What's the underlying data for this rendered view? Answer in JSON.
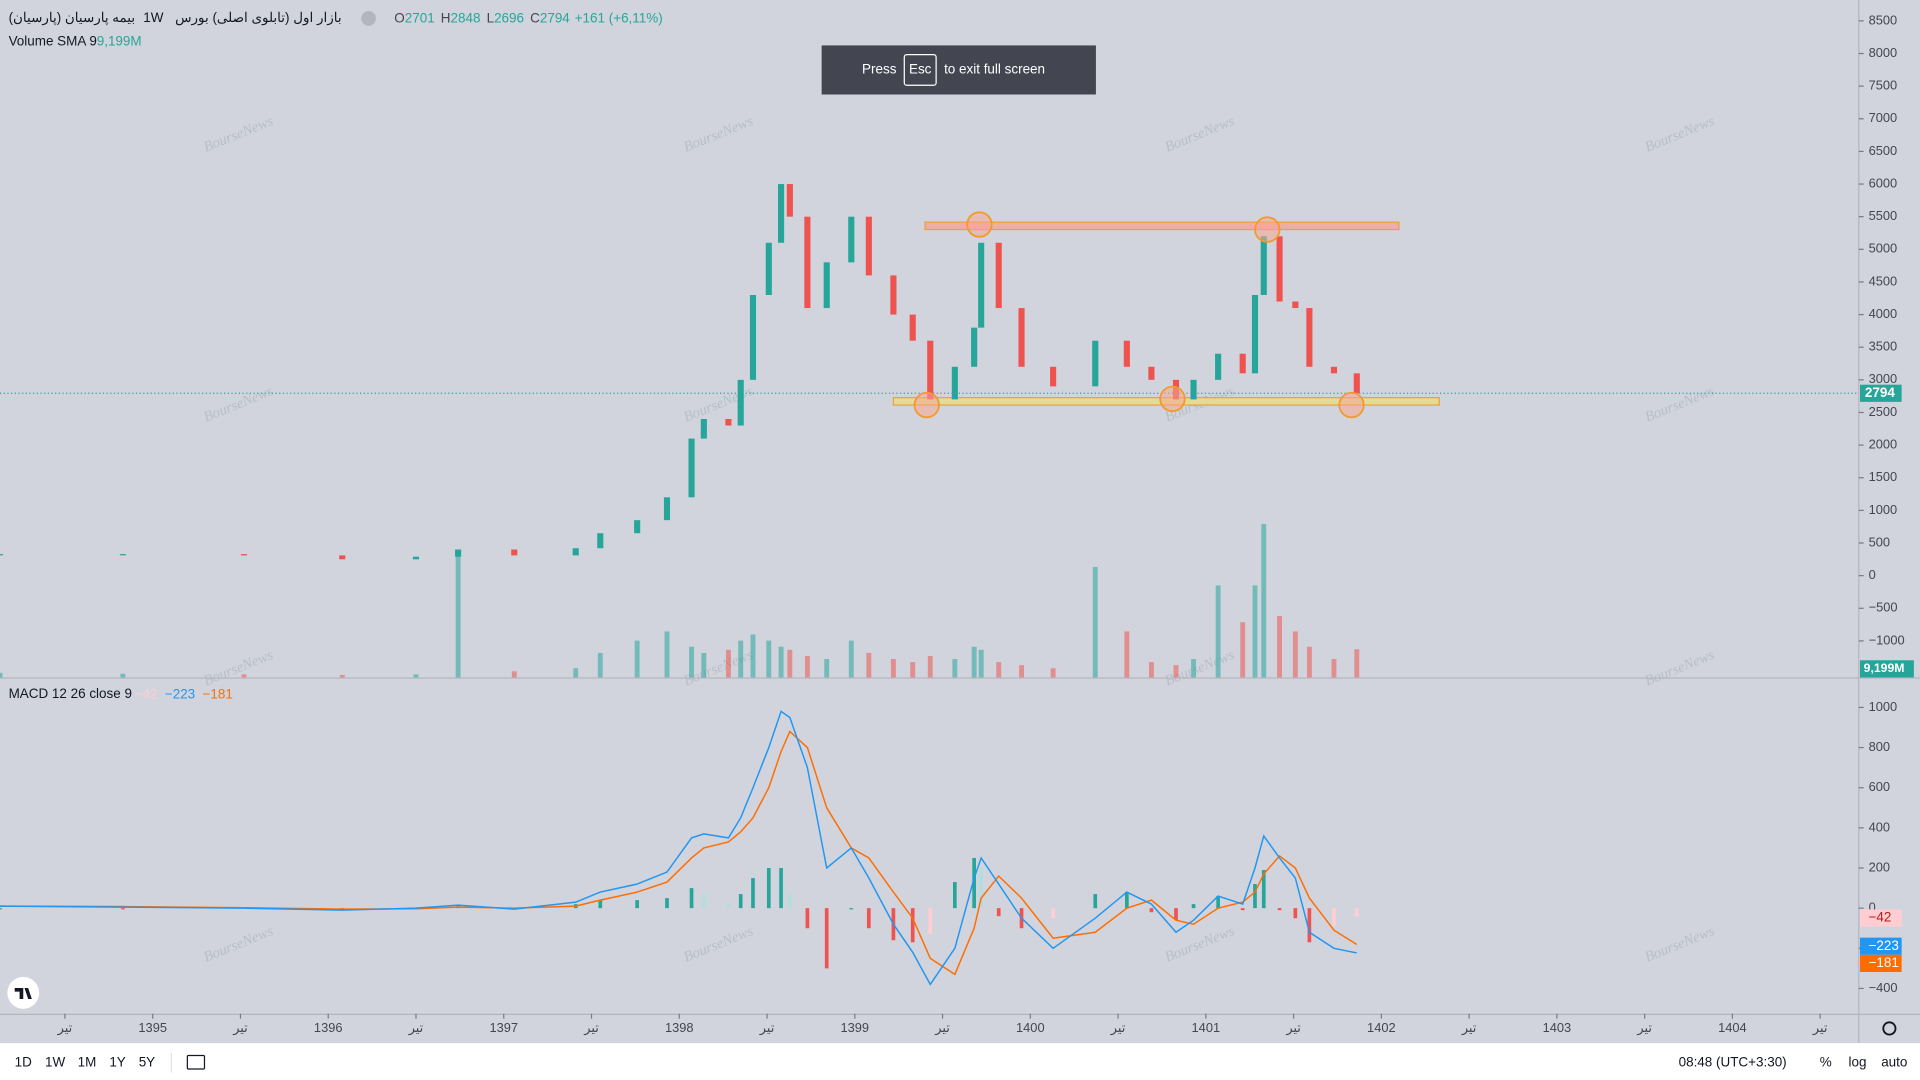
{
  "header": {
    "symbol": "بیمه پارسیان (پارسیان)",
    "interval": "1W",
    "market": "بازار اول (تابلوی اصلی) بورس",
    "ohlc": [
      {
        "label": "O",
        "value": 2701
      },
      {
        "label": "H",
        "value": 2848
      },
      {
        "label": "L",
        "value": 2696
      },
      {
        "label": "C",
        "value": 2794
      }
    ],
    "change": "+161 (+6,11%)"
  },
  "volume_legend": {
    "title": "Volume SMA 9",
    "value": "9,199M"
  },
  "toast": {
    "press": "Press",
    "key": "Esc",
    "text": "to exit full screen"
  },
  "watermark": "BourseNews",
  "toolbar": {
    "ranges": [
      "1D",
      "1W",
      "1M",
      "1Y",
      "5Y"
    ],
    "clock": "08:48 (UTC+3:30)",
    "options": [
      "%",
      "log",
      "auto"
    ]
  },
  "chart_data": [
    {
      "type": "candlestick",
      "x": [
        1394.13,
        1394.83,
        1395.52,
        1396.08,
        1396.5,
        1396.74,
        1397.06,
        1397.41,
        1397.55,
        1397.76,
        1397.93,
        1398.07,
        1398.14,
        1398.28,
        1398.35,
        1398.42,
        1398.51,
        1398.58,
        1398.63,
        1398.73,
        1398.84,
        1398.98,
        1399.08,
        1399.22,
        1399.33,
        1399.43,
        1399.57,
        1399.68,
        1399.72,
        1399.82,
        1399.95,
        1400.13,
        1400.37,
        1400.55,
        1400.69,
        1400.83,
        1400.93,
        1401.07,
        1401.21,
        1401.28,
        1401.33,
        1401.42,
        1401.51,
        1401.59,
        1401.73,
        1401.86
      ],
      "close": [
        330,
        330,
        310,
        250,
        290,
        400,
        310,
        420,
        650,
        850,
        1200,
        2100,
        2400,
        2300,
        3000,
        4300,
        5100,
        6000,
        5500,
        4100,
        4800,
        5500,
        4600,
        4000,
        3600,
        2700,
        3200,
        3800,
        5100,
        4100,
        3200,
        2900,
        3600,
        3200,
        3000,
        2700,
        3000,
        3400,
        3100,
        4300,
        5200,
        4200,
        4100,
        3200,
        3100,
        2794
      ],
      "volume": [
        1500,
        1200,
        1000,
        800,
        1000,
        40000,
        2000,
        3000,
        8000,
        12000,
        15000,
        10000,
        8000,
        9000,
        12000,
        14000,
        12000,
        10000,
        9000,
        7000,
        6000,
        12000,
        8000,
        6000,
        5000,
        7000,
        6000,
        10000,
        9000,
        5000,
        4000,
        3000,
        36000,
        15000,
        5000,
        4000,
        6000,
        30000,
        18000,
        30000,
        50000,
        20000,
        15000,
        10000,
        6000,
        9199
      ],
      "vlim": [
        0,
        60000
      ],
      "last_price": 2794,
      "up_color": "#26a69a",
      "down_color": "#ef5350",
      "xlim": [
        1394.13,
        1404.72
      ],
      "xticks": [
        {
          "value": 1394.5,
          "label": "تیر"
        },
        1395,
        {
          "value": 1395.5,
          "label": "تیر"
        },
        1396,
        {
          "value": 1396.5,
          "label": "تیر"
        },
        1397,
        {
          "value": 1397.5,
          "label": "تیر"
        },
        1398,
        {
          "value": 1398.5,
          "label": "تیر"
        },
        1399,
        {
          "value": 1399.5,
          "label": "تیر"
        },
        1400,
        {
          "value": 1400.5,
          "label": "تیر"
        },
        1401,
        {
          "value": 1401.5,
          "label": "تیر"
        },
        1402,
        {
          "value": 1402.5,
          "label": "تیر"
        },
        1403,
        {
          "value": 1403.5,
          "label": "تیر"
        },
        1404,
        {
          "value": 1404.5,
          "label": "تیر"
        }
      ],
      "ylim": [
        -1560,
        8820
      ],
      "yticks": [
        8500,
        8000,
        7500,
        7000,
        6500,
        6000,
        5500,
        5000,
        4500,
        4000,
        3500,
        3000,
        2500,
        2000,
        1500,
        1000,
        500,
        0,
        {
          "value": -500,
          "label": "−500"
        },
        {
          "value": -1000,
          "label": "−1000"
        }
      ],
      "zones": [
        {
          "from": 5303,
          "to": 5416,
          "x": [
            1399.4,
            1402.1
          ],
          "color": "#f4a3a0"
        },
        {
          "from": 2614,
          "to": 2727,
          "x": [
            1399.22,
            1402.33
          ],
          "color": "#e6dd8c"
        }
      ],
      "markers": {
        "x": [
          1399.71,
          1401.35,
          1399.41,
          1400.81,
          1401.83
        ],
        "y": [
          5380,
          5303,
          2614,
          2708,
          2614
        ]
      }
    },
    {
      "type": "macd",
      "title": "MACD 12 26 close 9",
      "macd": {
        "color": "#2196f3",
        "values": [
          10,
          5,
          0,
          -10,
          0,
          15,
          -5,
          30,
          80,
          120,
          180,
          350,
          370,
          350,
          450,
          600,
          800,
          980,
          950,
          700,
          200,
          300,
          150,
          -80,
          -220,
          -380,
          -200,
          150,
          250,
          120,
          -50,
          -200,
          -50,
          80,
          20,
          -120,
          -60,
          60,
          20,
          200,
          360,
          250,
          150,
          -120,
          -200,
          -223
        ]
      },
      "signal": {
        "color": "#ff6d00",
        "values": [
          10,
          8,
          2,
          -5,
          -3,
          5,
          0,
          10,
          40,
          80,
          130,
          250,
          300,
          330,
          380,
          450,
          600,
          780,
          880,
          800,
          500,
          300,
          250,
          80,
          -50,
          -250,
          -330,
          -100,
          50,
          160,
          50,
          -150,
          -120,
          0,
          40,
          -60,
          -80,
          0,
          30,
          80,
          170,
          260,
          200,
          50,
          -110,
          -181
        ]
      },
      "histogram": {
        "values": [
          0,
          -3,
          -2,
          -5,
          3,
          10,
          -5,
          20,
          40,
          40,
          50,
          100,
          70,
          20,
          70,
          150,
          200,
          200,
          70,
          -100,
          -300,
          0,
          -100,
          -160,
          -170,
          -130,
          130,
          250,
          200,
          -40,
          -100,
          -50,
          70,
          80,
          -20,
          -60,
          20,
          60,
          -10,
          120,
          190,
          -10,
          -50,
          -170,
          -90,
          -42
        ]
      },
      "legend": [
        {
          "value": -42,
          "label": "−42",
          "color": "#ffcdd2"
        },
        {
          "value": -223,
          "label": "−223",
          "color": "#2196f3"
        },
        {
          "value": -181,
          "label": "−181",
          "color": "#ff6d00"
        }
      ],
      "ylim": [
        -526,
        1131
      ],
      "yticks": [
        1000,
        800,
        600,
        400,
        200,
        0,
        {
          "value": -200,
          "label": "−200"
        },
        {
          "value": -400,
          "label": "−400"
        }
      ]
    }
  ]
}
